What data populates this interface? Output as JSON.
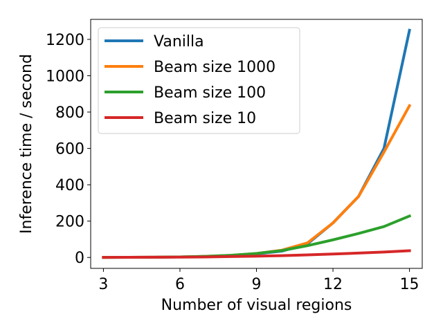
{
  "chart_data": {
    "type": "line",
    "title": "",
    "xlabel": "Number of visual regions",
    "ylabel": "Inference time / second",
    "xlim": [
      2.5,
      15.5
    ],
    "ylim": [
      -60,
      1310
    ],
    "xticks": [
      3,
      6,
      9,
      12,
      15
    ],
    "yticks": [
      0,
      200,
      400,
      600,
      800,
      1000,
      1200
    ],
    "grid": false,
    "legend_position": "top-left",
    "x": [
      3,
      4,
      5,
      6,
      7,
      8,
      9,
      10,
      11,
      12,
      13,
      14,
      15
    ],
    "series": [
      {
        "name": "Vanilla",
        "color": "#1f77b4",
        "values": [
          0.5,
          0.8,
          1.5,
          3,
          5,
          10,
          20,
          35,
          75,
          190,
          335,
          600,
          1250
        ]
      },
      {
        "name": "Beam size 1000",
        "color": "#ff7f0e",
        "values": [
          0.5,
          0.8,
          1.5,
          3,
          6,
          12,
          22,
          40,
          80,
          190,
          335,
          580,
          835
        ]
      },
      {
        "name": "Beam size 100",
        "color": "#2ca02c",
        "values": [
          0.5,
          0.8,
          1.5,
          3,
          6,
          12,
          22,
          38,
          65,
          97,
          132,
          170,
          228
        ]
      },
      {
        "name": "Beam size 10",
        "color": "#d62728",
        "values": [
          0.5,
          0.8,
          1.2,
          2,
          3,
          5,
          7,
          10,
          14,
          19,
          24,
          30,
          37
        ]
      }
    ]
  }
}
